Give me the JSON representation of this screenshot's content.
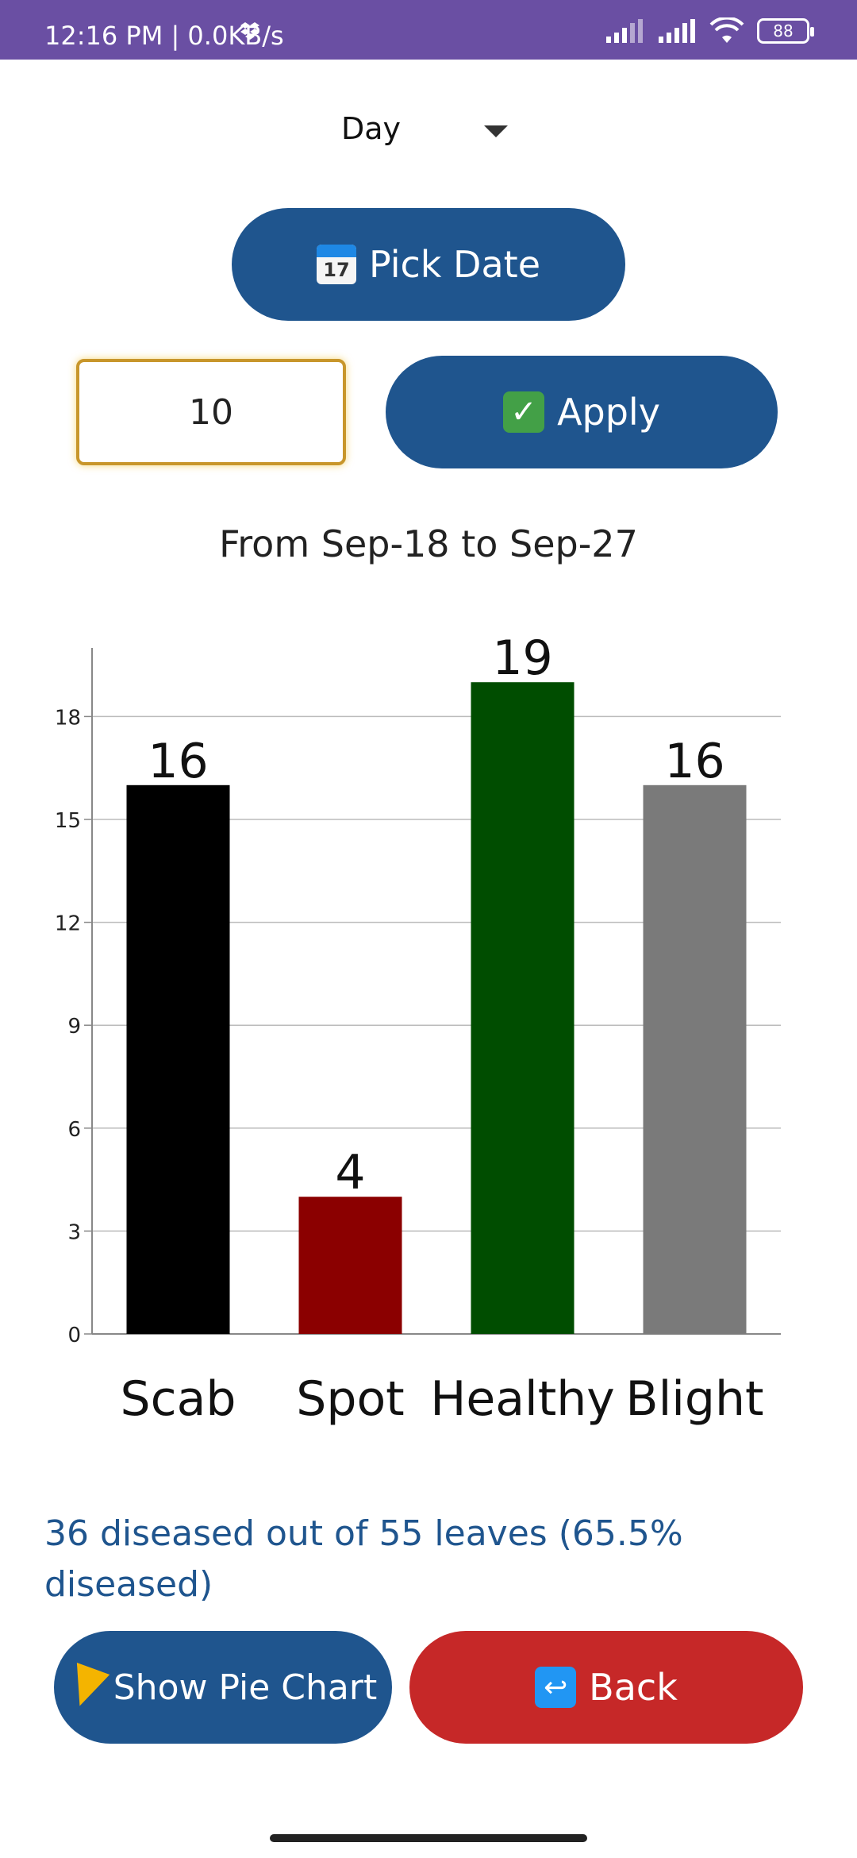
{
  "status_bar": {
    "time": "12:16 PM | 0.0KB/s",
    "battery": "88",
    "icons": [
      "dropbox-icon",
      "signal-icon",
      "signal-icon",
      "wifi-icon",
      "battery-icon"
    ]
  },
  "controls": {
    "period_dropdown": "Day",
    "pick_date_label": "Pick Date",
    "pick_date_icon_text": "17",
    "days_value": "10",
    "apply_label": "Apply"
  },
  "range_text": "From Sep-18 to Sep-27",
  "chart_data": {
    "type": "bar",
    "categories": [
      "Scab",
      "Spot",
      "Healthy",
      "Blight"
    ],
    "values": [
      16,
      4,
      19,
      16
    ],
    "colors": [
      "#000000",
      "#8b0000",
      "#004d00",
      "#7a7a7a"
    ],
    "ylim": [
      0,
      20
    ],
    "yticks": [
      0,
      3,
      6,
      9,
      12,
      15,
      18
    ],
    "grid": true,
    "data_labels": true
  },
  "summary": "36 diseased out of 55 leaves (65.5% diseased)",
  "actions": {
    "pie_label": "Show Pie Chart",
    "back_label": "Back"
  }
}
